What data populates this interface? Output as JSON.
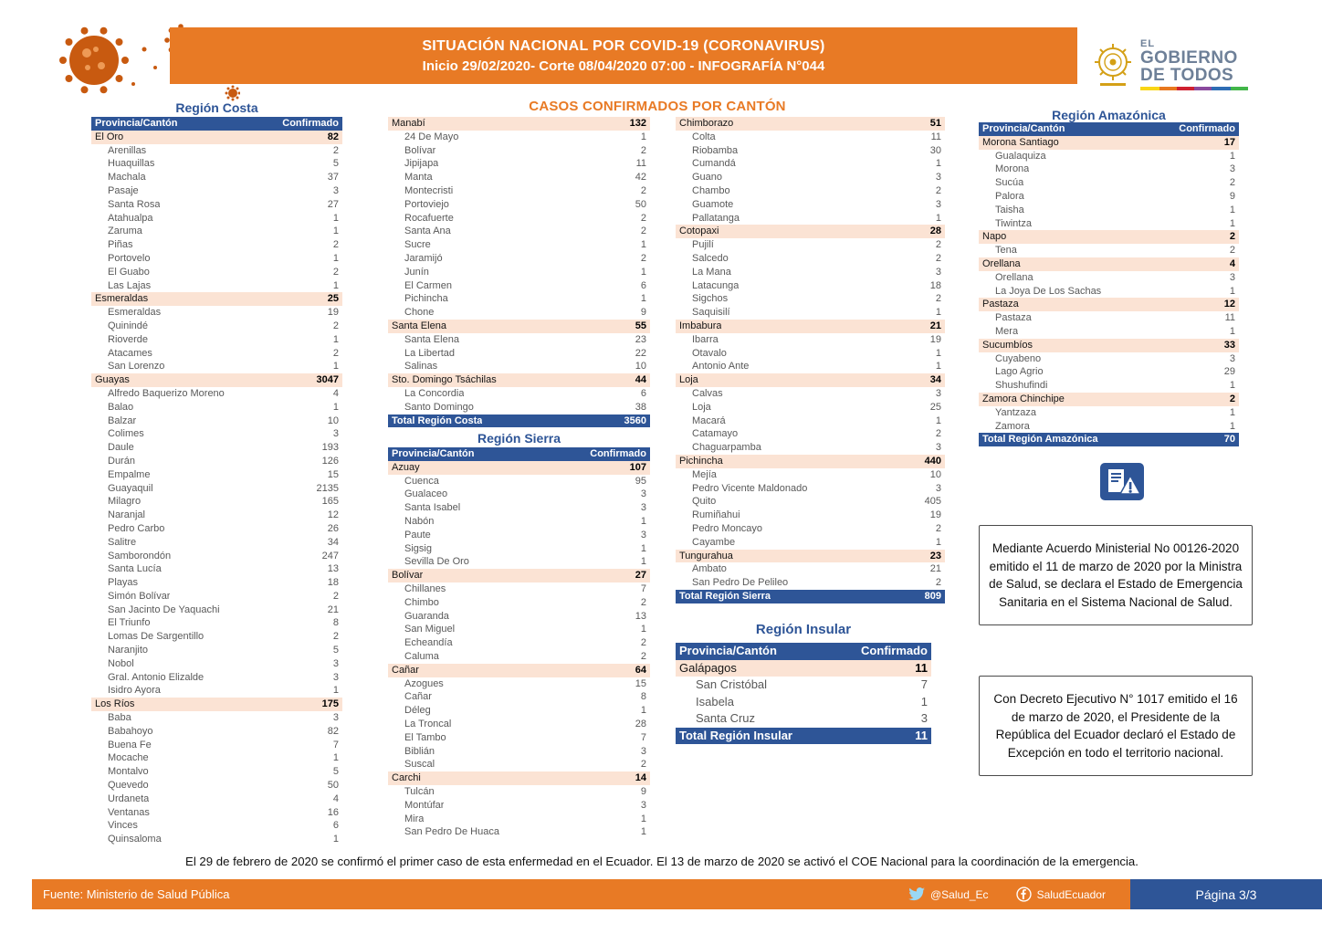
{
  "header": {
    "title_line1": "SITUACIÓN NACIONAL POR  COVID-19 (CORONAVIRUS)",
    "title_line2": "Inicio 29/02/2020- Corte 08/04/2020 07:00  - INFOGRAFÍA N°044",
    "logo_line1": "EL",
    "logo_line2": "GOBIERNO",
    "logo_line3": "DE TODOS"
  },
  "main_title": "CASOS CONFIRMADOS POR CANTÓN",
  "table_headers": {
    "province": "Provincia/Cantón",
    "confirmed": "Confirmado"
  },
  "colors": {
    "orange": "#E87A25",
    "blue": "#2E5597",
    "peach": "#FBE3D4"
  },
  "regions": {
    "costa": {
      "title": "Región Costa",
      "total_label": "Total Región Costa",
      "total": 3560,
      "provinces": [
        {
          "name": "El Oro",
          "value": 82,
          "cantons": [
            [
              "Arenillas",
              2
            ],
            [
              "Huaquillas",
              5
            ],
            [
              "Machala",
              37
            ],
            [
              "Pasaje",
              3
            ],
            [
              "Santa Rosa",
              27
            ],
            [
              "Atahualpa",
              1
            ],
            [
              "Zaruma",
              1
            ],
            [
              "Piñas",
              2
            ],
            [
              "Portovelo",
              1
            ],
            [
              "El Guabo",
              2
            ],
            [
              "Las Lajas",
              1
            ]
          ]
        },
        {
          "name": "Esmeraldas",
          "value": 25,
          "cantons": [
            [
              "Esmeraldas",
              19
            ],
            [
              "Quinindé",
              2
            ],
            [
              "Rioverde",
              1
            ],
            [
              "Atacames",
              2
            ],
            [
              "San Lorenzo",
              1
            ]
          ]
        },
        {
          "name": "Guayas",
          "value": 3047,
          "cantons": [
            [
              "Alfredo Baquerizo Moreno",
              4
            ],
            [
              "Balao",
              1
            ],
            [
              "Balzar",
              10
            ],
            [
              "Colimes",
              3
            ],
            [
              "Daule",
              193
            ],
            [
              "Durán",
              126
            ],
            [
              "Empalme",
              15
            ],
            [
              "Guayaquil",
              2135
            ],
            [
              "Milagro",
              165
            ],
            [
              "Naranjal",
              12
            ],
            [
              "Pedro Carbo",
              26
            ],
            [
              "Salitre",
              34
            ],
            [
              "Samborondón",
              247
            ],
            [
              "Santa Lucía",
              13
            ],
            [
              "Playas",
              18
            ],
            [
              "Simón Bolívar",
              2
            ],
            [
              "San Jacinto De Yaquachi",
              21
            ],
            [
              "El Triunfo",
              8
            ],
            [
              "Lomas De Sargentillo",
              2
            ],
            [
              "Naranjito",
              5
            ],
            [
              "Nobol",
              3
            ],
            [
              "Gral. Antonio Elizalde",
              3
            ],
            [
              "Isidro Ayora",
              1
            ]
          ]
        },
        {
          "name": "Los Ríos",
          "value": 175,
          "cantons": [
            [
              "Baba",
              3
            ],
            [
              "Babahoyo",
              82
            ],
            [
              "Buena Fe",
              7
            ],
            [
              "Mocache",
              1
            ],
            [
              "Montalvo",
              5
            ],
            [
              "Quevedo",
              50
            ],
            [
              "Urdaneta",
              4
            ],
            [
              "Ventanas",
              16
            ],
            [
              "Vinces",
              6
            ],
            [
              "Quinsaloma",
              1
            ]
          ]
        },
        {
          "name": "Manabí",
          "value": 132,
          "cantons": [
            [
              "24 De Mayo",
              1
            ],
            [
              "Bolívar",
              2
            ],
            [
              "Jipijapa",
              11
            ],
            [
              "Manta",
              42
            ],
            [
              "Montecristi",
              2
            ],
            [
              "Portoviejo",
              50
            ],
            [
              "Rocafuerte",
              2
            ],
            [
              "Santa Ana",
              2
            ],
            [
              "Sucre",
              1
            ],
            [
              "Jaramijó",
              2
            ],
            [
              "Junín",
              1
            ],
            [
              "El Carmen",
              6
            ],
            [
              "Pichincha",
              1
            ],
            [
              "Chone",
              9
            ]
          ]
        },
        {
          "name": "Santa Elena",
          "value": 55,
          "cantons": [
            [
              "Santa Elena",
              23
            ],
            [
              "La Libertad",
              22
            ],
            [
              "Salinas",
              10
            ]
          ]
        },
        {
          "name": "Sto. Domingo  Tsáchilas",
          "value": 44,
          "cantons": [
            [
              "La Concordia",
              6
            ],
            [
              "Santo Domingo",
              38
            ]
          ]
        }
      ]
    },
    "sierra": {
      "title": "Región Sierra",
      "total_label": "Total Región Sierra",
      "total": 809,
      "provinces": [
        {
          "name": "Azuay",
          "value": 107,
          "cantons": [
            [
              "Cuenca",
              95
            ],
            [
              "Gualaceo",
              3
            ],
            [
              "Santa Isabel",
              3
            ],
            [
              "Nabón",
              1
            ],
            [
              "Paute",
              3
            ],
            [
              "Sigsig",
              1
            ],
            [
              "Sevilla De Oro",
              1
            ]
          ]
        },
        {
          "name": "Bolívar",
          "value": 27,
          "cantons": [
            [
              "Chillanes",
              7
            ],
            [
              "Chimbo",
              2
            ],
            [
              "Guaranda",
              13
            ],
            [
              "San Miguel",
              1
            ],
            [
              "Echeandía",
              2
            ],
            [
              "Caluma",
              2
            ]
          ]
        },
        {
          "name": "Cañar",
          "value": 64,
          "cantons": [
            [
              "Azogues",
              15
            ],
            [
              "Cañar",
              8
            ],
            [
              "Déleg",
              1
            ],
            [
              "La Troncal",
              28
            ],
            [
              "El Tambo",
              7
            ],
            [
              "Biblián",
              3
            ],
            [
              "Suscal",
              2
            ]
          ]
        },
        {
          "name": "Carchi",
          "value": 14,
          "cantons": [
            [
              "Tulcán",
              9
            ],
            [
              "Montúfar",
              3
            ],
            [
              "Mira",
              1
            ],
            [
              "San Pedro De Huaca",
              1
            ]
          ]
        },
        {
          "name": "Chimborazo",
          "value": 51,
          "cantons": [
            [
              "Colta",
              11
            ],
            [
              "Riobamba",
              30
            ],
            [
              "Cumandá",
              1
            ],
            [
              "Guano",
              3
            ],
            [
              "Chambo",
              2
            ],
            [
              "Guamote",
              3
            ],
            [
              "Pallatanga",
              1
            ]
          ]
        },
        {
          "name": "Cotopaxi",
          "value": 28,
          "cantons": [
            [
              "Pujilí",
              2
            ],
            [
              "Salcedo",
              2
            ],
            [
              "La Mana",
              3
            ],
            [
              "Latacunga",
              18
            ],
            [
              "Sigchos",
              2
            ],
            [
              "Saquisilí",
              1
            ]
          ]
        },
        {
          "name": "Imbabura",
          "value": 21,
          "cantons": [
            [
              "Ibarra",
              19
            ],
            [
              "Otavalo",
              1
            ],
            [
              "Antonio Ante",
              1
            ]
          ]
        },
        {
          "name": "Loja",
          "value": 34,
          "cantons": [
            [
              "Calvas",
              3
            ],
            [
              "Loja",
              25
            ],
            [
              "Macará",
              1
            ],
            [
              "Catamayo",
              2
            ],
            [
              "Chaguarpamba",
              3
            ]
          ]
        },
        {
          "name": "Pichincha",
          "value": 440,
          "cantons": [
            [
              "Mejía",
              10
            ],
            [
              "Pedro Vicente Maldonado",
              3
            ],
            [
              "Quito",
              405
            ],
            [
              "Rumiñahui",
              19
            ],
            [
              "Pedro Moncayo",
              2
            ],
            [
              "Cayambe",
              1
            ]
          ]
        },
        {
          "name": "Tungurahua",
          "value": 23,
          "cantons": [
            [
              "Ambato",
              21
            ],
            [
              "San Pedro De Pelileo",
              2
            ]
          ]
        }
      ]
    },
    "insular": {
      "title": "Región Insular",
      "total_label": "Total Región Insular",
      "total": 11,
      "provinces": [
        {
          "name": "Galápagos",
          "value": 11,
          "cantons": [
            [
              "San Cristóbal",
              7
            ],
            [
              "Isabela",
              1
            ],
            [
              "Santa Cruz",
              3
            ]
          ]
        }
      ]
    },
    "amazonica": {
      "title": "Región Amazónica",
      "total_label": "Total Región Amazónica",
      "total": 70,
      "provinces": [
        {
          "name": "Morona Santiago",
          "value": 17,
          "cantons": [
            [
              "Gualaquiza",
              1
            ],
            [
              "Morona",
              3
            ],
            [
              "Sucúa",
              2
            ],
            [
              "Palora",
              9
            ],
            [
              "Taisha",
              1
            ],
            [
              "Tiwintza",
              1
            ]
          ]
        },
        {
          "name": "Napo",
          "value": 2,
          "cantons": [
            [
              "Tena",
              2
            ]
          ]
        },
        {
          "name": "Orellana",
          "value": 4,
          "cantons": [
            [
              "Orellana",
              3
            ],
            [
              "La Joya De Los Sachas",
              1
            ]
          ]
        },
        {
          "name": "Pastaza",
          "value": 12,
          "cantons": [
            [
              "Pastaza",
              11
            ],
            [
              "Mera",
              1
            ]
          ]
        },
        {
          "name": "Sucumbíos",
          "value": 33,
          "cantons": [
            [
              "Cuyabeno",
              3
            ],
            [
              "Lago Agrio",
              29
            ],
            [
              "Shushufindi",
              1
            ]
          ]
        },
        {
          "name": "Zamora Chinchipe",
          "value": 2,
          "cantons": [
            [
              "Yantzaza",
              1
            ],
            [
              "Zamora",
              1
            ]
          ]
        }
      ]
    }
  },
  "notes": {
    "ministerial": "Mediante Acuerdo Ministerial No 00126-2020 emitido el 11 de marzo de 2020 por la Ministra de Salud, se declara el Estado de Emergencia Sanitaria en el Sistema Nacional de Salud.",
    "decreto": "Con Decreto Ejecutivo N° 1017 emitido el 16 de marzo de 2020, el Presidente de la República del Ecuador declaró el Estado de Excepción en todo el territorio nacional.",
    "footer_note": "El 29 de febrero de 2020 se confirmó el primer caso de esta enfermedad en el Ecuador. El 13 de marzo de 2020 se activó el COE Nacional para la coordinación de la emergencia."
  },
  "footer": {
    "source_label": "Fuente:",
    "source": "Ministerio de Salud Pública",
    "twitter": "@Salud_Ec",
    "facebook": "SaludEcuador",
    "page": "Página 3/3"
  }
}
